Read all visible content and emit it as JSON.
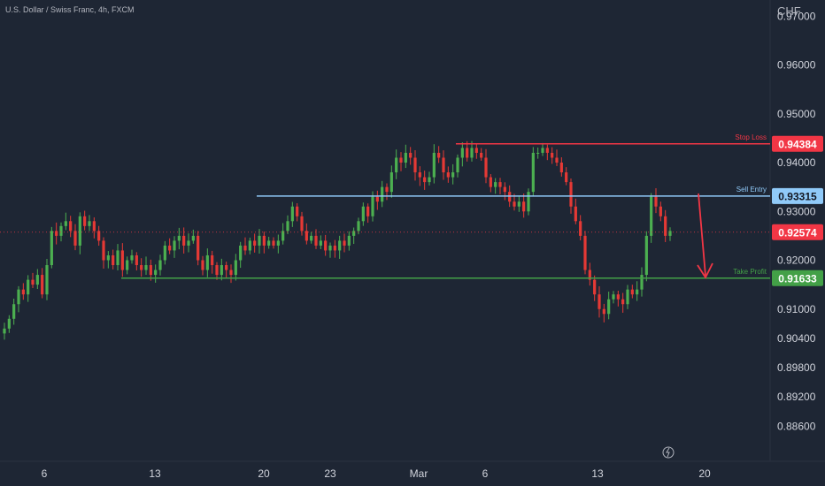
{
  "header": {
    "title": "U.S. Dollar / Swiss Franc, 4h, FXCM",
    "currency": "CHF"
  },
  "colors": {
    "bg": "#1e2634",
    "up": "#4caf50",
    "down": "#e53935",
    "text": "#b2b5be",
    "axisText": "#d1d4dc",
    "stopLoss": "#f23645",
    "entry": "#90caf9",
    "takeProfit": "#43a047",
    "current": "#f23645"
  },
  "icons": {
    "replay": "lightning-icon"
  },
  "chart_data": {
    "type": "candlestick",
    "title": "U.S. Dollar / Swiss Franc, 4h, FXCM",
    "ylabel": "CHF",
    "ylim": [
      0.8825,
      0.97
    ],
    "y_ticks": [
      "0.97000",
      "0.96000",
      "0.95000",
      "0.94000",
      "0.93000",
      "0.92000",
      "0.91000",
      "0.90400",
      "0.89800",
      "0.89200",
      "0.88600"
    ],
    "x_ticks": [
      "6",
      "13",
      "20",
      "23",
      "Mar",
      "6",
      "13",
      "20"
    ],
    "levels": [
      {
        "name": "stop-loss",
        "label": "Stop Loss",
        "value": 0.94384,
        "display": "0.94384"
      },
      {
        "name": "sell-entry",
        "label": "Sell Entry",
        "value": 0.93315,
        "display": "0.93315"
      },
      {
        "name": "take-profit",
        "label": "Take Profit",
        "value": 0.91633,
        "display": "0.91633"
      }
    ],
    "current_price": {
      "value": 0.92574,
      "display": "0.92574"
    },
    "path": [
      0.906,
      0.908,
      0.911,
      0.914,
      0.913,
      0.916,
      0.915,
      0.917,
      0.913,
      0.919,
      0.926,
      0.925,
      0.927,
      0.928,
      0.926,
      0.923,
      0.929,
      0.927,
      0.928,
      0.926,
      0.924,
      0.92,
      0.921,
      0.919,
      0.922,
      0.918,
      0.92,
      0.921,
      0.919,
      0.918,
      0.919,
      0.917,
      0.918,
      0.92,
      0.923,
      0.922,
      0.924,
      0.925,
      0.923,
      0.924,
      0.925,
      0.92,
      0.918,
      0.921,
      0.919,
      0.917,
      0.919,
      0.918,
      0.917,
      0.92,
      0.923,
      0.922,
      0.924,
      0.923,
      0.925,
      0.923,
      0.924,
      0.923,
      0.924,
      0.926,
      0.928,
      0.931,
      0.929,
      0.926,
      0.924,
      0.925,
      0.923,
      0.924,
      0.922,
      0.923,
      0.922,
      0.924,
      0.923,
      0.925,
      0.926,
      0.928,
      0.931,
      0.929,
      0.933,
      0.932,
      0.935,
      0.934,
      0.938,
      0.941,
      0.94,
      0.942,
      0.941,
      0.938,
      0.937,
      0.936,
      0.937,
      0.942,
      0.941,
      0.938,
      0.937,
      0.938,
      0.941,
      0.943,
      0.941,
      0.943,
      0.942,
      0.941,
      0.937,
      0.935,
      0.936,
      0.935,
      0.934,
      0.932,
      0.931,
      0.932,
      0.93,
      0.934,
      0.942,
      0.942,
      0.943,
      0.942,
      0.941,
      0.94,
      0.938,
      0.936,
      0.931,
      0.928,
      0.925,
      0.918,
      0.916,
      0.913,
      0.91,
      0.909,
      0.912,
      0.913,
      0.912,
      0.911,
      0.914,
      0.913,
      0.914,
      0.917,
      0.925,
      0.933,
      0.931,
      0.929,
      0.925,
      0.926
    ]
  }
}
